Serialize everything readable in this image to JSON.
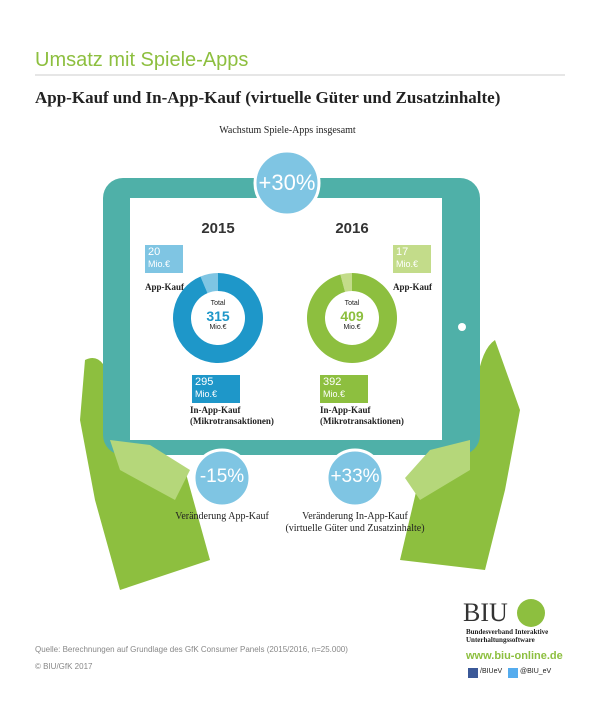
{
  "header": {
    "title": "Umsatz mit Spiele-Apps",
    "subtitle": "App-Kauf und In-App-Kauf (virtuelle Güter und Zusatzinhalte)"
  },
  "growth": {
    "label": "Wachstum Spiele-Apps insgesamt",
    "value": "+30%"
  },
  "changes": [
    {
      "value": "-15%",
      "label": "Veränderung App-Kauf"
    },
    {
      "value": "+33%",
      "label": "Veränderung In-App-Kauf\n(virtuelle Güter und Zusatzinhalte)"
    }
  ],
  "chart_data": [
    {
      "type": "donut",
      "title": "2015",
      "categories": [
        "App-Kauf",
        "In-App-Kauf\n(Mikrotransaktionen)"
      ],
      "values": [
        20,
        295
      ],
      "colors": [
        "#7fc5e3",
        "#1e97c9"
      ],
      "unit": "Mio.€",
      "total_label": "Total",
      "total": 315
    },
    {
      "type": "donut",
      "title": "2016",
      "categories": [
        "App-Kauf",
        "In-App-Kauf\n(Mikrotransaktionen)"
      ],
      "values": [
        17,
        392
      ],
      "colors": [
        "#c3dc8a",
        "#8dbf3f"
      ],
      "unit": "Mio.€",
      "total_label": "Total",
      "total": 409
    }
  ],
  "footer": {
    "source": "Quelle: Berechnungen auf Grundlage des GfK Consumer Panels (2015/2016, n=25.000)",
    "copyright": "© BIU/GfK 2017",
    "logo": "BIU",
    "org": "Bundesverband Interaktive\nUnterhaltungssoftware",
    "url": "www.biu-online.de",
    "facebook": "/BIUeV",
    "twitter": "@BIU_eV"
  }
}
